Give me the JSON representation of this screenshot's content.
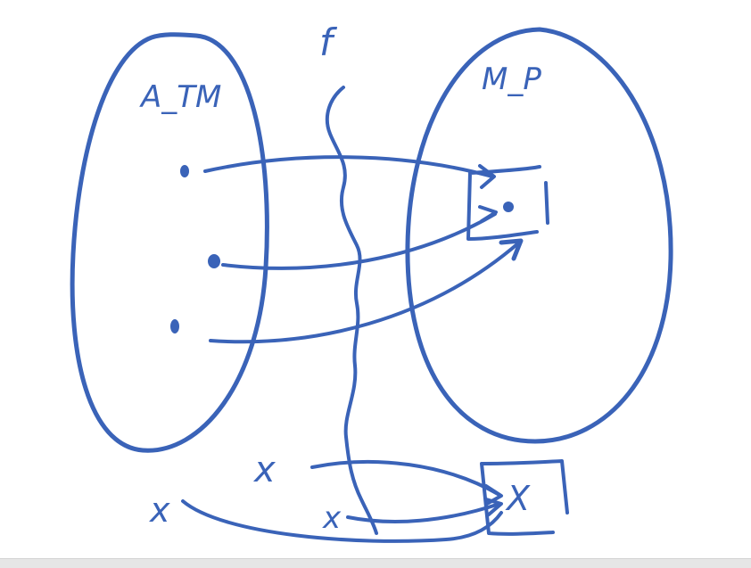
{
  "whiteboard": {
    "ink_color": "#3a63b8",
    "background_color": "#ffffff",
    "labels": {
      "left_set": "A_TM",
      "function": "f",
      "right_set": "M_P",
      "bottom_x_middle": "x",
      "bottom_x_left": "x",
      "bottom_x_center": "x",
      "bottom_box_x": "X"
    }
  }
}
